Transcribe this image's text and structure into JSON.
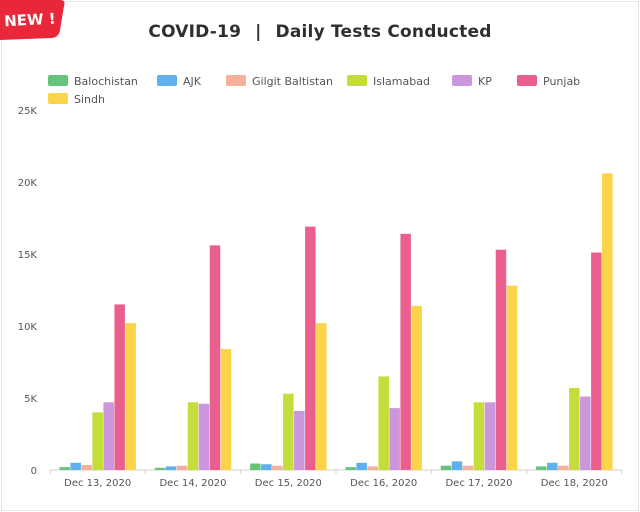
{
  "badge": {
    "label": "NEW !",
    "color": "#e8273a"
  },
  "title": {
    "left": "COVID-19",
    "separator": "|",
    "right": "Daily Tests Conducted"
  },
  "chart_data": {
    "type": "bar",
    "title": "COVID-19 | Daily Tests Conducted",
    "xlabel": "",
    "ylabel": "",
    "ylim": [
      0,
      25000
    ],
    "yticks": [
      0,
      5000,
      10000,
      15000,
      20000,
      25000
    ],
    "ytick_labels": [
      "0",
      "5K",
      "10K",
      "15K",
      "20K",
      "25K"
    ],
    "grid": false,
    "legend_position": "top-left",
    "categories": [
      "Dec 13, 2020",
      "Dec 14, 2020",
      "Dec 15, 2020",
      "Dec 16, 2020",
      "Dec 17, 2020",
      "Dec 18, 2020"
    ],
    "series": [
      {
        "name": "Balochistan",
        "color": "#66c47a",
        "values": [
          200,
          150,
          450,
          200,
          300,
          250
        ]
      },
      {
        "name": "AJK",
        "color": "#5fb0ec",
        "values": [
          500,
          250,
          400,
          500,
          600,
          500
        ]
      },
      {
        "name": "Gilgit Baltistan",
        "color": "#f4b09a",
        "values": [
          350,
          300,
          300,
          250,
          300,
          300
        ]
      },
      {
        "name": "Islamabad",
        "color": "#c6dc3a",
        "values": [
          4000,
          4700,
          5300,
          6500,
          4700,
          5700
        ]
      },
      {
        "name": "KP",
        "color": "#cc96dc",
        "values": [
          4700,
          4600,
          4100,
          4300,
          4700,
          5100
        ]
      },
      {
        "name": "Punjab",
        "color": "#ea5f8d",
        "values": [
          11500,
          15600,
          16900,
          16400,
          15300,
          15100
        ]
      },
      {
        "name": "Sindh",
        "color": "#fbd44a",
        "values": [
          10200,
          8400,
          10200,
          11400,
          12800,
          20600
        ]
      }
    ]
  }
}
